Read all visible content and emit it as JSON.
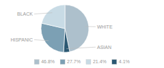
{
  "chart_data": {
    "type": "pie",
    "categories": [
      "WHITE",
      "ASIAN",
      "HISPANIC",
      "BLACK"
    ],
    "values": [
      46.8,
      4.1,
      27.7,
      21.4
    ],
    "colors": [
      "#adc0cc",
      "#2b5872",
      "#7ca0b4",
      "#c8dbe5"
    ],
    "legend": "bottom",
    "legend_labels": [
      "46.8%",
      "27.7%",
      "21.4%",
      "4.1%"
    ],
    "legend_colors": [
      "#adc0cc",
      "#7ca0b4",
      "#c8dbe5",
      "#2b5872"
    ]
  }
}
